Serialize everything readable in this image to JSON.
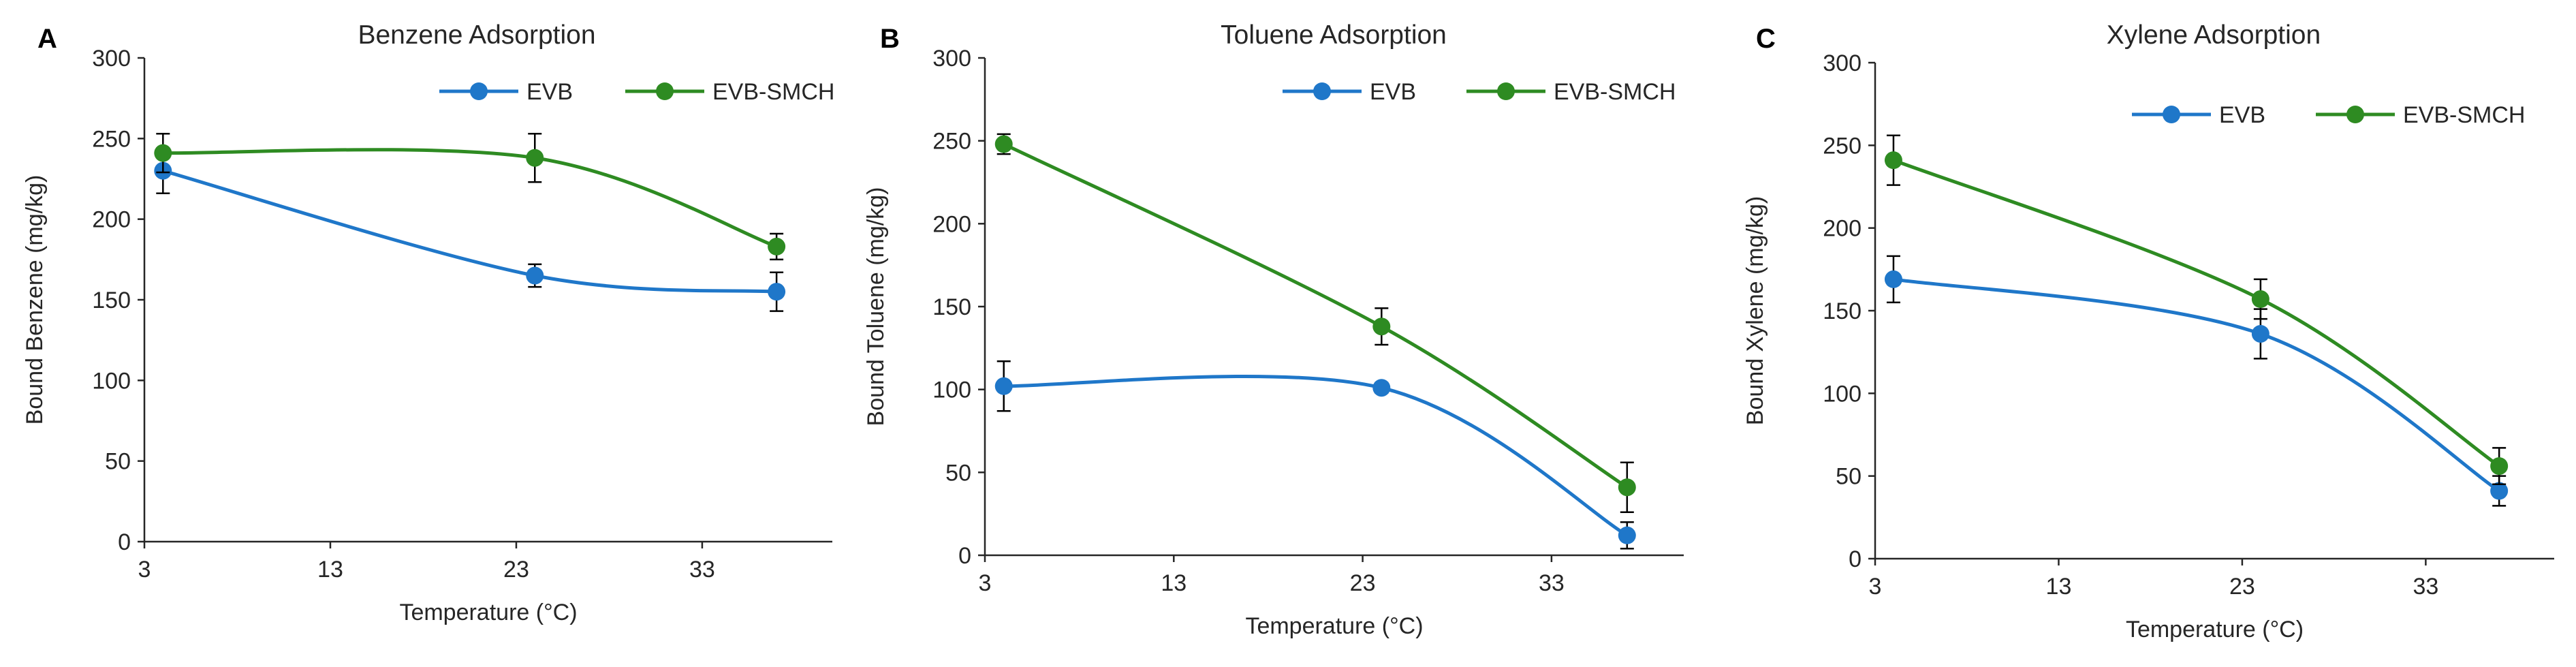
{
  "chart_data": [
    {
      "panel": "A",
      "type": "line",
      "title": "Benzene Adsorption",
      "xlabel": "Temperature (°C)",
      "ylabel": "Bound Benzene (mg/kg)",
      "xlim": [
        3,
        40
      ],
      "ylim": [
        0,
        300
      ],
      "xticks": [
        3,
        13,
        23,
        33
      ],
      "yticks": [
        0,
        50,
        100,
        150,
        200,
        250,
        300
      ],
      "x": [
        4,
        24,
        37
      ],
      "series": [
        {
          "name": "EVB",
          "values": [
            230,
            165,
            155
          ],
          "errors": [
            14,
            7,
            12
          ]
        },
        {
          "name": "EVB-SMCH",
          "values": [
            241,
            238,
            183
          ],
          "errors": [
            12,
            15,
            8
          ]
        }
      ]
    },
    {
      "panel": "B",
      "type": "line",
      "title": "Toluene Adsorption",
      "xlabel": "Temperature (°C)",
      "ylabel": "Bound Toluene (mg/kg)",
      "xlim": [
        3,
        40
      ],
      "ylim": [
        0,
        300
      ],
      "xticks": [
        3,
        13,
        23,
        33
      ],
      "yticks": [
        0,
        50,
        100,
        150,
        200,
        250,
        300
      ],
      "x": [
        4,
        24,
        37
      ],
      "series": [
        {
          "name": "EVB",
          "values": [
            102,
            101,
            12
          ],
          "errors": [
            15,
            3,
            8
          ]
        },
        {
          "name": "EVB-SMCH",
          "values": [
            248,
            138,
            41
          ],
          "errors": [
            6,
            11,
            15
          ]
        }
      ]
    },
    {
      "panel": "C",
      "type": "line",
      "title": "Xylene Adsorption",
      "xlabel": "Temperature (°C)",
      "ylabel": "Bound Xylene (mg/kg)",
      "xlim": [
        3,
        40
      ],
      "ylim": [
        0,
        300
      ],
      "xticks": [
        3,
        13,
        23,
        33
      ],
      "yticks": [
        0,
        50,
        100,
        150,
        200,
        250,
        300
      ],
      "x": [
        4,
        24,
        37
      ],
      "series": [
        {
          "name": "EVB",
          "values": [
            169,
            136,
            41
          ],
          "errors": [
            14,
            15,
            9
          ]
        },
        {
          "name": "EVB-SMCH",
          "values": [
            241,
            157,
            56
          ],
          "errors": [
            15,
            12,
            11
          ]
        }
      ]
    }
  ],
  "colors": {
    "EVB": "#1f77c9",
    "EVB-SMCH": "#2e8b22"
  }
}
